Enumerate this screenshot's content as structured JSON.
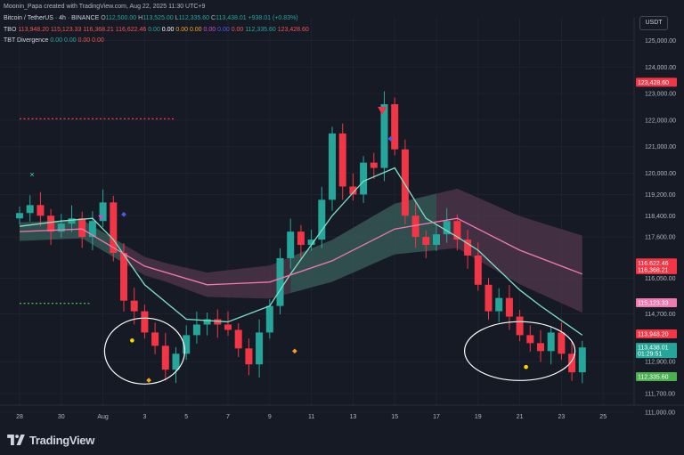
{
  "header": {
    "credit": "Moonin_Papa created with TradingView.com, Aug 22, 2025 11:30 UTC+9",
    "symbol": "Bitcoin / TetherUS · 4h · BINANCE",
    "ohlc": {
      "o_label": "O",
      "o": "112,500.00",
      "h_label": "H",
      "h": "113,525.00",
      "l_label": "L",
      "l": "112,335.60",
      "c_label": "C",
      "c": "113,438.01",
      "change": "+938.01 (+0.83%)"
    },
    "tbo": {
      "label": "TBO",
      "v1": "113,948.20",
      "v2": "115,123.33",
      "v3": "116,368.21",
      "v4": "116,622.46",
      "v5": "0.00",
      "v6": "0.00",
      "v7": "0.00",
      "v8": "0.00",
      "v9": "0.00",
      "v10": "0.00",
      "v11": "0.00",
      "v12": "112,335.60",
      "v13": "123,428.60"
    },
    "tbt": {
      "label": "TBT Divergence",
      "v1": "0.00",
      "v2": "0.00",
      "v3": "0.00",
      "v4": "0.00"
    }
  },
  "currency_button": "USDT",
  "colors": {
    "background": "#161a25",
    "up": "#26a69a",
    "down": "#f23645",
    "fast_ma": "#7fe0c8",
    "slow_ma": "#f07ab0",
    "cloud_bull": "#3d6a62",
    "cloud_bear": "#5a3a52",
    "level_red": "#f23645",
    "level_green": "#4caf50",
    "annotation": "#ffffff"
  },
  "chart_data": {
    "type": "candlestick",
    "title": "Bitcoin / TetherUS · 4h · BINANCE",
    "x_ticks": [
      "28",
      "30",
      "Aug",
      "3",
      "5",
      "7",
      "9",
      "11",
      "13",
      "15",
      "17",
      "19",
      "21",
      "23",
      "25"
    ],
    "y_ticks": [
      "125,000.00",
      "124,000.00",
      "123,000.00",
      "122,000.00",
      "121,000.00",
      "120,000.00",
      "119,200.00",
      "118,400.00",
      "117,600.00",
      "116,050.00",
      "114,700.00",
      "112,900.00",
      "111,700.00",
      "111,000.00"
    ],
    "ylim": [
      111000,
      125300
    ],
    "price_tags": [
      {
        "value": "123,428.60",
        "price": 123428.6,
        "color": "#f23645"
      },
      {
        "value": "116,622.46",
        "price": 116622.46,
        "color": "#f23645"
      },
      {
        "value": "116,368.21",
        "price": 116368.21,
        "color": "#f23645"
      },
      {
        "value": "115,123.33",
        "price": 115123.33,
        "color": "#f07ab0"
      },
      {
        "value": "113,948.20",
        "price": 113948.2,
        "color": "#f23645"
      },
      {
        "value": "113,438.01",
        "time": "01:29:51",
        "price": 113438.01,
        "color": "#26a69a"
      },
      {
        "value": "112,335.60",
        "price": 112335.6,
        "color": "#4caf50"
      }
    ],
    "levels": [
      {
        "price": 122050,
        "color": "#f23645",
        "from": 28,
        "to": 35.5
      },
      {
        "price": 115100,
        "color": "#4caf50",
        "from": 28,
        "to": 31.4
      },
      {
        "price": 111900,
        "color": "#4caf50",
        "from": 3.5,
        "to": 19.9
      },
      {
        "price": 123430,
        "color": "#f23645",
        "from": 13.7,
        "to": 21.8
      },
      {
        "price": 117850,
        "color": "#f23645",
        "from": 8.1,
        "to": 10.4
      },
      {
        "price": 120670,
        "color": "#f23645",
        "from": 11.5,
        "to": 13.7
      },
      {
        "price": 119100,
        "color": "#4caf50",
        "from": 10.4,
        "to": 11.7
      },
      {
        "price": 117050,
        "color": "#4caf50",
        "from": 7.9,
        "to": 8.6
      }
    ],
    "series": [
      {
        "name": "BTCUSDT 4h close",
        "x": [
          28.0,
          28.5,
          29.0,
          29.5,
          30.0,
          30.5,
          31.0,
          31.5,
          32.0,
          32.5,
          33.0,
          33.5,
          34.0,
          34.5,
          35.0,
          35.5,
          36.0,
          36.5,
          37.0,
          37.5,
          38.0,
          38.5,
          39.0,
          39.5,
          40.0,
          40.5,
          41.0,
          41.5,
          42.0,
          42.5,
          43.0,
          43.5,
          44.0,
          44.5,
          45.0,
          45.5,
          46.0,
          46.5,
          47.0,
          47.5,
          48.0,
          48.5,
          49.0,
          49.5,
          50.0,
          50.5,
          51.0,
          51.5,
          52.0,
          52.5,
          53.0,
          53.5,
          54.0,
          54.5,
          55.0
        ],
        "y": [
          118500,
          118800,
          118400,
          117800,
          118100,
          118300,
          117600,
          118200,
          118900,
          117000,
          115200,
          114800,
          114000,
          113500,
          112600,
          113200,
          113900,
          114300,
          114500,
          114300,
          114100,
          113400,
          112800,
          114000,
          115000,
          116800,
          117800,
          117300,
          117500,
          119000,
          121500,
          119500,
          119200,
          120400,
          120200,
          122600,
          120900,
          118400,
          117600,
          117300,
          117700,
          118200,
          117500,
          116900,
          115800,
          114800,
          115300,
          114600,
          113900,
          113600,
          113300,
          114000,
          113200,
          112500,
          113438
        ]
      },
      {
        "name": "Fast MA",
        "x": [
          28,
          30,
          31.5,
          32.5,
          34,
          36,
          38,
          40,
          41,
          43,
          44.5,
          46,
          47.5,
          49,
          50,
          52,
          53,
          55
        ],
        "y": [
          118000,
          118200,
          118300,
          117500,
          115800,
          114500,
          114400,
          115000,
          116200,
          118400,
          119700,
          120200,
          118300,
          117600,
          117100,
          115600,
          115000,
          113900
        ]
      },
      {
        "name": "Slow MA",
        "x": [
          28,
          31,
          34,
          37,
          40,
          43,
          46,
          49,
          52,
          55
        ],
        "y": [
          117800,
          117900,
          116500,
          115800,
          115900,
          116700,
          117900,
          118300,
          117100,
          116200
        ]
      }
    ],
    "annotations": [
      {
        "type": "ellipse",
        "label": "circle around Aug 3 low"
      },
      {
        "type": "ellipse",
        "label": "circle around Aug 20-22 low"
      }
    ]
  },
  "footer": {
    "brand": "TradingView"
  }
}
